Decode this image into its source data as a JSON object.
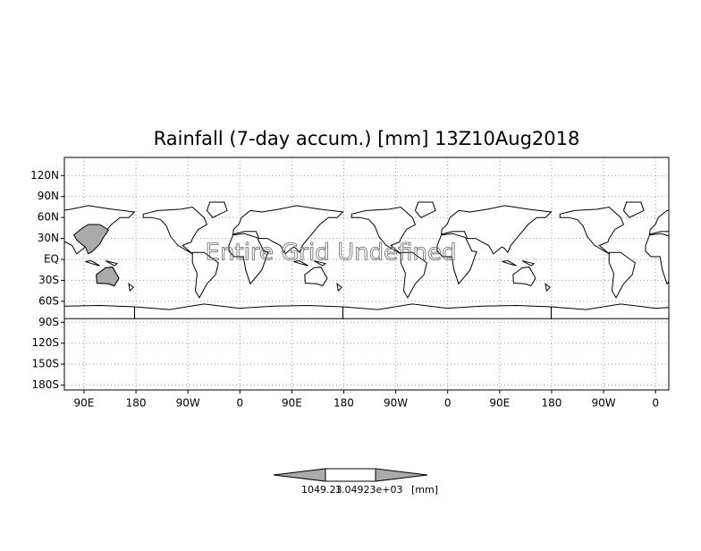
{
  "chart_data": {
    "type": "map",
    "title": "Rainfall (7-day accum.) [mm] 13Z10Aug2018",
    "annotation": "Entire Grid Undefined",
    "xlim": [
      56,
      1103
    ],
    "xticks": [
      {
        "value": 90,
        "label": "90E"
      },
      {
        "value": 180,
        "label": "180"
      },
      {
        "value": 270,
        "label": "90W"
      },
      {
        "value": 360,
        "label": "0"
      },
      {
        "value": 450,
        "label": "90E"
      },
      {
        "value": 540,
        "label": "180"
      },
      {
        "value": 630,
        "label": "90W"
      },
      {
        "value": 720,
        "label": "0"
      },
      {
        "value": 810,
        "label": "90E"
      },
      {
        "value": 900,
        "label": "180"
      },
      {
        "value": 990,
        "label": "90W"
      },
      {
        "value": 1080,
        "label": "0"
      }
    ],
    "ylim": [
      -187,
      146
    ],
    "yticks": [
      {
        "value": 120,
        "label": "120N"
      },
      {
        "value": 90,
        "label": "90N"
      },
      {
        "value": 60,
        "label": "60N"
      },
      {
        "value": 30,
        "label": "30N"
      },
      {
        "value": 0,
        "label": "EQ"
      },
      {
        "value": -30,
        "label": "30S"
      },
      {
        "value": -60,
        "label": "60S"
      },
      {
        "value": -90,
        "label": "90S"
      },
      {
        "value": -120,
        "label": "120S"
      },
      {
        "value": -150,
        "label": "150S"
      },
      {
        "value": -180,
        "label": "180S"
      }
    ],
    "grid": true,
    "colorbar": {
      "labels": [
        "1049.23",
        "1.04923e+03"
      ],
      "unit": "[mm]"
    }
  }
}
